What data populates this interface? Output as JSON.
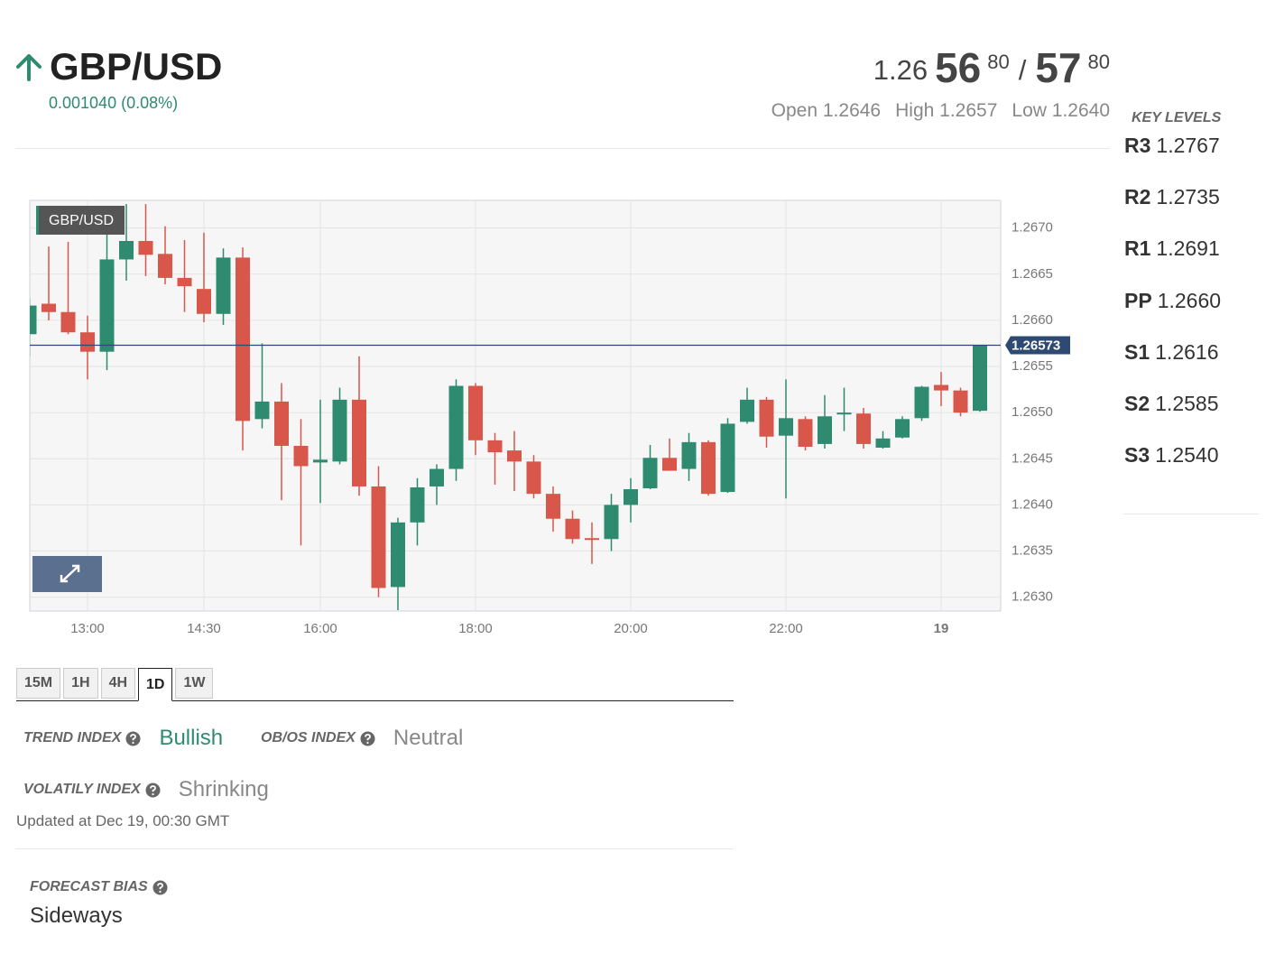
{
  "header": {
    "symbol": "GBP/USD",
    "change": "0.001040 (0.08%)",
    "color": "#2e8b6f"
  },
  "quote": {
    "bid_big": "1.26",
    "bid_pips": "56",
    "bid_frac": "80",
    "separator": "/",
    "ask_pips": "57",
    "ask_frac": "80"
  },
  "ohl": [
    {
      "label": "Open",
      "value": "1.2646"
    },
    {
      "label": "High",
      "value": "1.2657"
    },
    {
      "label": "Low",
      "value": "1.2640"
    }
  ],
  "key_levels": {
    "title": "KEY LEVELS",
    "levels": [
      {
        "label": "R3",
        "value": "1.2767"
      },
      {
        "label": "R2",
        "value": "1.2735"
      },
      {
        "label": "R1",
        "value": "1.2691"
      },
      {
        "label": "PP",
        "value": "1.2660"
      },
      {
        "label": "S1",
        "value": "1.2616"
      },
      {
        "label": "S2",
        "value": "1.2585"
      },
      {
        "label": "S3",
        "value": "1.2540"
      }
    ]
  },
  "chart_data": {
    "type": "candlestick",
    "name": "GBP/USD",
    "categories": [
      null,
      null,
      null,
      "13:00",
      null,
      null,
      null,
      null,
      null,
      "14:30",
      null,
      null,
      null,
      null,
      null,
      "16:00",
      null,
      null,
      null,
      null,
      null,
      null,
      null,
      "18:00",
      null,
      null,
      null,
      null,
      null,
      null,
      null,
      "20:00",
      null,
      null,
      null,
      null,
      null,
      null,
      null,
      "22:00",
      null,
      null,
      null,
      null,
      null,
      null,
      null,
      "19",
      null,
      null
    ],
    "open": [
      1.26585,
      1.26618,
      1.26609,
      1.26587,
      1.26566,
      1.26666,
      1.26686,
      1.26672,
      1.26646,
      1.26634,
      1.26607,
      1.26668,
      1.26493,
      1.26512,
      1.26464,
      1.26446,
      1.26447,
      1.26514,
      1.2642,
      1.26311,
      1.26381,
      1.2642,
      1.26439,
      1.26529,
      1.2647,
      1.26459,
      1.26447,
      1.26412,
      1.26385,
      1.26364,
      1.26363,
      1.264,
      1.26418,
      1.26451,
      1.26439,
      1.26468,
      1.26414,
      1.2649,
      1.26514,
      1.26475,
      1.26493,
      1.26466,
      1.26498,
      1.26499,
      1.26462,
      1.26473,
      1.26494,
      1.2653,
      1.26524,
      1.26502
    ],
    "high": [
      1.26624,
      1.2668,
      1.26685,
      1.26605,
      1.26702,
      1.26726,
      1.26726,
      1.26702,
      1.26687,
      1.26695,
      1.26678,
      1.26679,
      1.26575,
      1.26532,
      1.26493,
      1.26514,
      1.26527,
      1.26561,
      1.26442,
      1.26386,
      1.26429,
      1.26444,
      1.26536,
      1.26532,
      1.26478,
      1.2648,
      1.26454,
      1.2642,
      1.26394,
      1.26381,
      1.26412,
      1.26429,
      1.26465,
      1.26472,
      1.26478,
      1.2647,
      1.26494,
      1.26527,
      1.26517,
      1.26536,
      1.26496,
      1.26519,
      1.26527,
      1.26505,
      1.2648,
      1.26496,
      1.26529,
      1.26544,
      1.26527,
      1.26573
    ],
    "low": [
      1.26561,
      1.266,
      1.26585,
      1.26536,
      1.26546,
      1.26643,
      1.26648,
      1.26639,
      1.26609,
      1.26598,
      1.26595,
      1.26459,
      1.26483,
      1.26405,
      1.26356,
      1.26402,
      1.26444,
      1.2641,
      1.263,
      1.26286,
      1.26356,
      1.264,
      1.26426,
      1.26454,
      1.26422,
      1.26415,
      1.26407,
      1.26371,
      1.26358,
      1.26336,
      1.2635,
      1.26381,
      1.26417,
      1.26437,
      1.26426,
      1.2641,
      1.26413,
      1.26488,
      1.26462,
      1.26407,
      1.26459,
      1.26461,
      1.2648,
      1.26461,
      1.26461,
      1.26472,
      1.26491,
      1.26507,
      1.26496,
      1.26501
    ],
    "close": [
      1.26616,
      1.26609,
      1.26587,
      1.26566,
      1.26666,
      1.26686,
      1.26671,
      1.26646,
      1.26637,
      1.26607,
      1.26668,
      1.26491,
      1.26512,
      1.26464,
      1.26442,
      1.26449,
      1.26514,
      1.2642,
      1.2631,
      1.26381,
      1.26419,
      1.26439,
      1.26529,
      1.2647,
      1.26457,
      1.26447,
      1.26412,
      1.26385,
      1.26363,
      1.26362,
      1.264,
      1.26417,
      1.26451,
      1.26437,
      1.26468,
      1.26412,
      1.26488,
      1.26514,
      1.26474,
      1.26494,
      1.26463,
      1.26496,
      1.265,
      1.26466,
      1.26472,
      1.26493,
      1.26528,
      1.26524,
      1.265,
      1.26573
    ],
    "up_color": "#2e8b6f",
    "down_color": "#d9574a",
    "ylim": [
      1.26285,
      1.2673
    ],
    "yticks": [
      {
        "value": 1.263,
        "label": "1.2630"
      },
      1.2635,
      {
        "value": 1.264,
        "label": "1.2640"
      },
      1.2645,
      {
        "value": 1.265,
        "label": "1.2650"
      },
      1.2655,
      {
        "value": 1.266,
        "label": "1.2660"
      },
      1.2665,
      {
        "value": 1.267,
        "label": "1.2670"
      }
    ],
    "grid": true,
    "last_price": 1.26573,
    "last_color": "#2e4a72"
  },
  "timeframes": {
    "items": [
      "15M",
      "1H",
      "4H",
      "1D",
      "1W"
    ],
    "active": 3
  },
  "indices": [
    {
      "label": "TREND INDEX",
      "value": "Bullish",
      "color": "#2e8b6f"
    },
    {
      "label": "OB/OS INDEX",
      "value": "Neutral",
      "color": "#888888"
    },
    {
      "label": "VOLATILY INDEX",
      "value": "Shrinking",
      "color": "#888888"
    }
  ],
  "updated": "Updated at Dec 19, 00:30 GMT",
  "forecast": {
    "label": "FORECAST BIAS",
    "value": "Sideways"
  }
}
